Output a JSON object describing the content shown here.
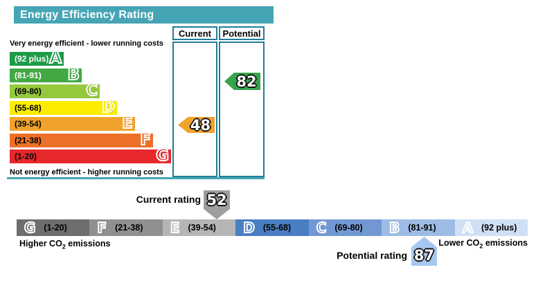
{
  "title": "Energy Efficiency Rating",
  "colors": {
    "header_bg": "#46a5b5",
    "border_teal": "#1f7d97",
    "current_marker": "#9e9e9e",
    "potential_marker": "#a6c8f0"
  },
  "chart": {
    "columns": {
      "current": "Current",
      "potential": "Potential"
    },
    "top_caption": "Very energy efficient - lower running costs",
    "bottom_caption": "Not energy efficient - higher running costs",
    "bands": [
      {
        "letter": "A",
        "label": "(92 plus)",
        "color": "#1e9b49",
        "text_color": "#ffffff"
      },
      {
        "letter": "B",
        "label": "(81-91)",
        "color": "#41a843",
        "text_color": "#ffffff"
      },
      {
        "letter": "C",
        "label": "(69-80)",
        "color": "#94c83d",
        "text_color": "#000000"
      },
      {
        "letter": "D",
        "label": "(55-68)",
        "color": "#fced00",
        "text_color": "#000000"
      },
      {
        "letter": "E",
        "label": "(39-54)",
        "color": "#f0a32c",
        "text_color": "#000000"
      },
      {
        "letter": "F",
        "label": "(21-38)",
        "color": "#ed7029",
        "text_color": "#000000"
      },
      {
        "letter": "G",
        "label": "(1-20)",
        "color": "#e7282d",
        "text_color": "#000000"
      }
    ],
    "current": {
      "value": "48",
      "color": "#f0a32c"
    },
    "potential": {
      "value": "82",
      "color": "#35a44c"
    }
  },
  "co2_scale": {
    "segments": [
      {
        "letter": "G",
        "range": "(1-20)",
        "color": "#6e6e6e"
      },
      {
        "letter": "F",
        "range": "(21-38)",
        "color": "#909090"
      },
      {
        "letter": "E",
        "range": "(39-54)",
        "color": "#b5b5b5"
      },
      {
        "letter": "D",
        "range": "(55-68)",
        "color": "#4a7ec3"
      },
      {
        "letter": "C",
        "range": "(69-80)",
        "color": "#7298d3"
      },
      {
        "letter": "B",
        "range": "(81-91)",
        "color": "#9dbbe5"
      },
      {
        "letter": "A",
        "range": "(92 plus)",
        "color": "#cfe0f4"
      }
    ],
    "higher_label": {
      "prefix": "Higher CO",
      "sub": "2",
      "suffix": " emissions"
    },
    "lower_label": {
      "prefix": "Lower CO",
      "sub": "2",
      "suffix": " emissions"
    },
    "current_rating": {
      "label": "Current rating",
      "value": "52"
    },
    "potential_rating": {
      "label": "Potential rating",
      "value": "87"
    }
  },
  "chart_data": {
    "type": "bar",
    "title": "Energy Efficiency Rating",
    "bands": [
      {
        "letter": "A",
        "label": "(92 plus)",
        "min": 92,
        "max": 100
      },
      {
        "letter": "B",
        "label": "(81-91)",
        "min": 81,
        "max": 91
      },
      {
        "letter": "C",
        "label": "(69-80)",
        "min": 69,
        "max": 80
      },
      {
        "letter": "D",
        "label": "(55-68)",
        "min": 55,
        "max": 68
      },
      {
        "letter": "E",
        "label": "(39-54)",
        "min": 39,
        "max": 54
      },
      {
        "letter": "F",
        "label": "(21-38)",
        "min": 21,
        "max": 38
      },
      {
        "letter": "G",
        "label": "(1-20)",
        "min": 1,
        "max": 20
      }
    ],
    "energy_efficiency": {
      "current": 48,
      "current_band": "E",
      "potential": 82,
      "potential_band": "B"
    },
    "co2_scale": {
      "current_rating": 52,
      "current_band": "E",
      "potential_rating": 87,
      "potential_band": "B"
    },
    "legend_position": "top-right-columns",
    "grid": false
  }
}
